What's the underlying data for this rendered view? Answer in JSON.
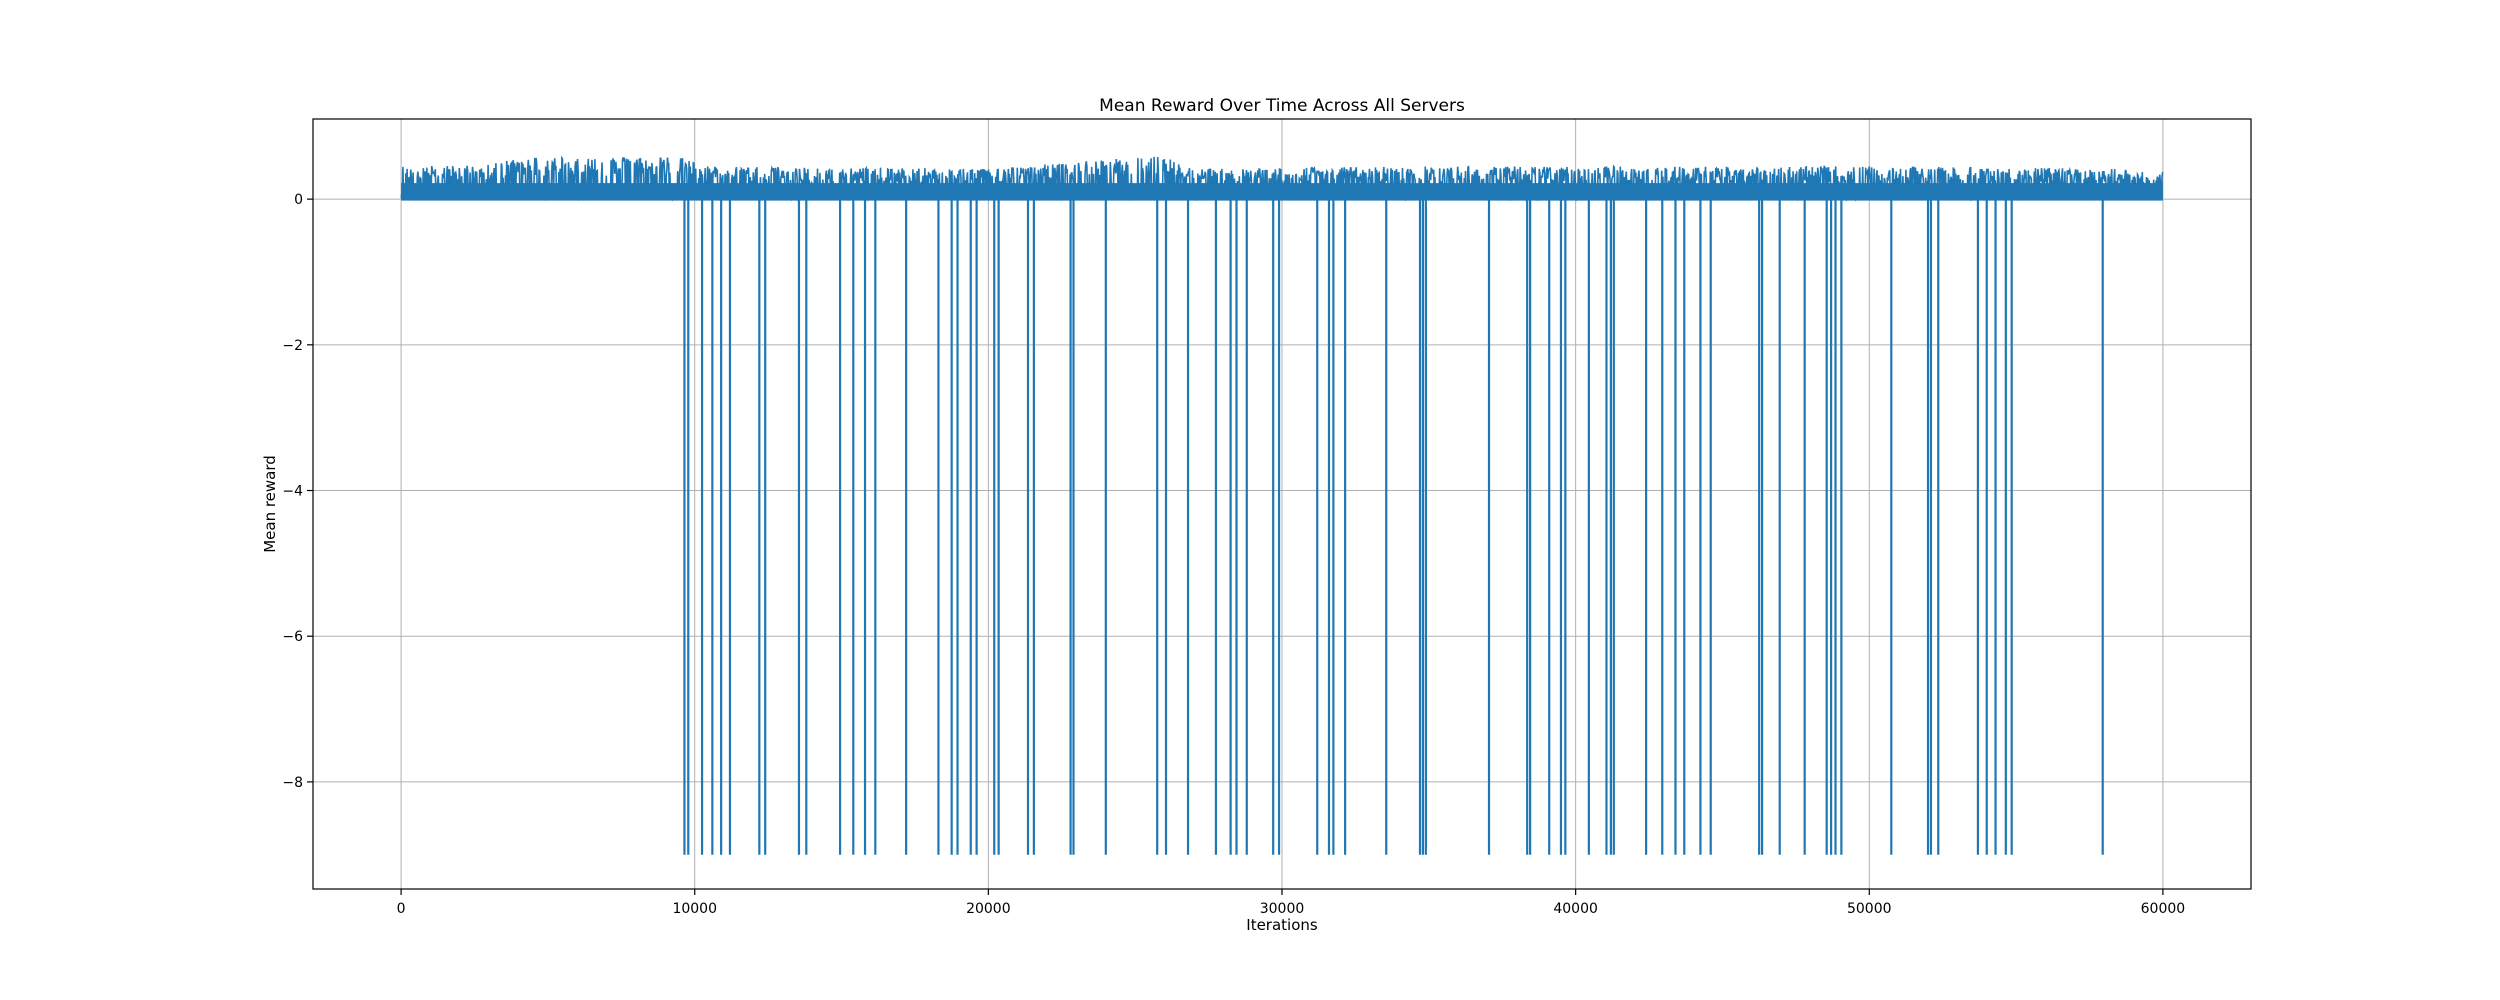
{
  "chart_data": {
    "type": "line",
    "title": "Mean Reward Over Time Across All Servers",
    "xlabel": "Iterations",
    "ylabel": "Mean reward",
    "xlim": [
      -3000,
      63000
    ],
    "ylim": [
      -9.47,
      1.1
    ],
    "xticks": [
      0,
      10000,
      20000,
      30000,
      40000,
      50000,
      60000
    ],
    "xtick_labels": [
      "0",
      "10000",
      "20000",
      "30000",
      "40000",
      "50000",
      "60000"
    ],
    "yticks": [
      -8,
      -6,
      -4,
      -2,
      0
    ],
    "ytick_labels": [
      "−8",
      "−6",
      "−4",
      "−2",
      "0"
    ],
    "grid": true,
    "legend": "none",
    "series": [
      {
        "color": "#1f77b4",
        "x_range": [
          0,
          60000
        ],
        "baseline": 0.0,
        "envelope": [
          {
            "x": 0,
            "y": 0.45
          },
          {
            "x": 3000,
            "y": 0.47
          },
          {
            "x": 4000,
            "y": 0.58
          },
          {
            "x": 9600,
            "y": 0.58
          },
          {
            "x": 10500,
            "y": 0.45
          },
          {
            "x": 20000,
            "y": 0.42
          },
          {
            "x": 25900,
            "y": 0.6
          },
          {
            "x": 27000,
            "y": 0.42
          },
          {
            "x": 35000,
            "y": 0.45
          },
          {
            "x": 45000,
            "y": 0.45
          },
          {
            "x": 50000,
            "y": 0.45
          },
          {
            "x": 58000,
            "y": 0.42
          },
          {
            "x": 60000,
            "y": 0.38
          }
        ],
        "drops": [
          {
            "x": 9650,
            "y": -9.0
          },
          {
            "x": 9780,
            "y": -9.0
          },
          {
            "x": 10250,
            "y": -9.0
          },
          {
            "x": 10600,
            "y": -9.0
          },
          {
            "x": 10900,
            "y": -9.0
          },
          {
            "x": 11200,
            "y": -9.0
          },
          {
            "x": 12200,
            "y": -9.0
          },
          {
            "x": 12400,
            "y": -9.0
          },
          {
            "x": 13550,
            "y": -9.0
          },
          {
            "x": 13800,
            "y": -9.0
          },
          {
            "x": 14950,
            "y": -9.0
          },
          {
            "x": 15400,
            "y": -9.0
          },
          {
            "x": 15800,
            "y": -9.0
          },
          {
            "x": 16150,
            "y": -9.0
          },
          {
            "x": 17200,
            "y": -9.0
          },
          {
            "x": 18300,
            "y": -9.0
          },
          {
            "x": 18750,
            "y": -9.0
          },
          {
            "x": 18950,
            "y": -9.0
          },
          {
            "x": 19400,
            "y": -9.0
          },
          {
            "x": 19600,
            "y": -9.0
          },
          {
            "x": 20200,
            "y": -9.0
          },
          {
            "x": 20350,
            "y": -9.0
          },
          {
            "x": 21350,
            "y": -9.0
          },
          {
            "x": 21550,
            "y": -9.0
          },
          {
            "x": 22800,
            "y": -9.0
          },
          {
            "x": 22900,
            "y": -9.0
          },
          {
            "x": 24000,
            "y": -9.0
          },
          {
            "x": 25750,
            "y": -9.0
          },
          {
            "x": 26050,
            "y": -9.0
          },
          {
            "x": 26800,
            "y": -9.0
          },
          {
            "x": 27750,
            "y": -9.0
          },
          {
            "x": 28250,
            "y": -9.0
          },
          {
            "x": 28450,
            "y": -9.0
          },
          {
            "x": 28800,
            "y": -9.0
          },
          {
            "x": 29700,
            "y": -9.0
          },
          {
            "x": 29900,
            "y": -9.0
          },
          {
            "x": 31200,
            "y": -9.0
          },
          {
            "x": 31600,
            "y": -9.0
          },
          {
            "x": 31750,
            "y": -9.0
          },
          {
            "x": 32150,
            "y": -9.0
          },
          {
            "x": 33550,
            "y": -9.0
          },
          {
            "x": 34700,
            "y": -9.0
          },
          {
            "x": 34800,
            "y": -9.0
          },
          {
            "x": 34900,
            "y": -9.0
          },
          {
            "x": 37050,
            "y": -9.0
          },
          {
            "x": 38350,
            "y": -9.0
          },
          {
            "x": 38450,
            "y": -9.0
          },
          {
            "x": 39100,
            "y": -9.0
          },
          {
            "x": 39500,
            "y": -9.0
          },
          {
            "x": 39650,
            "y": -9.0
          },
          {
            "x": 40450,
            "y": -9.0
          },
          {
            "x": 41050,
            "y": -9.0
          },
          {
            "x": 41200,
            "y": -9.0
          },
          {
            "x": 41300,
            "y": -9.0
          },
          {
            "x": 42400,
            "y": -9.0
          },
          {
            "x": 42950,
            "y": -9.0
          },
          {
            "x": 43400,
            "y": -9.0
          },
          {
            "x": 43700,
            "y": -9.0
          },
          {
            "x": 44250,
            "y": -9.0
          },
          {
            "x": 44600,
            "y": -9.0
          },
          {
            "x": 46250,
            "y": -9.0
          },
          {
            "x": 46350,
            "y": -9.0
          },
          {
            "x": 46950,
            "y": -9.0
          },
          {
            "x": 47800,
            "y": -9.0
          },
          {
            "x": 48550,
            "y": -9.0
          },
          {
            "x": 48700,
            "y": -9.0
          },
          {
            "x": 48850,
            "y": -9.0
          },
          {
            "x": 49050,
            "y": -9.0
          },
          {
            "x": 50750,
            "y": -9.0
          },
          {
            "x": 52000,
            "y": -9.0
          },
          {
            "x": 52100,
            "y": -9.0
          },
          {
            "x": 52350,
            "y": -9.0
          },
          {
            "x": 53700,
            "y": -9.0
          },
          {
            "x": 54000,
            "y": -9.0
          },
          {
            "x": 54300,
            "y": -9.0
          },
          {
            "x": 54650,
            "y": -9.0
          },
          {
            "x": 54850,
            "y": -9.0
          },
          {
            "x": 57950,
            "y": -9.0
          }
        ]
      }
    ]
  }
}
